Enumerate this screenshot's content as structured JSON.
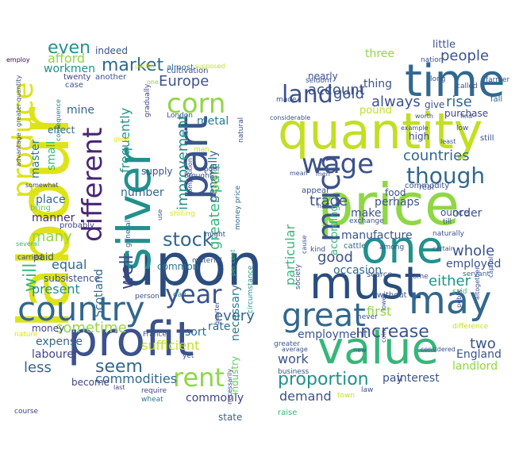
{
  "palette": {
    "purple": "#440154",
    "indigo": "#3b528b",
    "blue": "#31688e",
    "teal": "#21918c",
    "green": "#35b779",
    "lime": "#8fd744",
    "yellow": "#dde318"
  },
  "left_cloud": {
    "words": [
      {
        "text": "labour",
        "color": "#dde318"
      },
      {
        "text": "upon",
        "color": "#2a4d7e"
      },
      {
        "text": "profit",
        "color": "#3b528b"
      },
      {
        "text": "silver",
        "color": "#21918c"
      },
      {
        "text": "country",
        "color": "#31688e"
      },
      {
        "text": "part",
        "color": "#3b528b"
      },
      {
        "text": "produce",
        "color": "#dde318"
      },
      {
        "text": "different",
        "color": "#482475"
      },
      {
        "text": "corn",
        "color": "#8fd744"
      },
      {
        "text": "rent",
        "color": "#8fd744"
      },
      {
        "text": "year",
        "color": "#3b528b"
      },
      {
        "text": "stock",
        "color": "#31688e"
      },
      {
        "text": "market",
        "color": "#31688e"
      },
      {
        "text": "seem",
        "color": "#31688e"
      },
      {
        "text": "well",
        "color": "#414487"
      },
      {
        "text": "will",
        "color": "#35b779"
      },
      {
        "text": "Europe",
        "color": "#3b528b"
      },
      {
        "text": "greater part",
        "color": "#35b779"
      },
      {
        "text": "improvement",
        "color": "#21918c"
      },
      {
        "text": "frequently",
        "color": "#21918c"
      },
      {
        "text": "many",
        "color": "#8fd744"
      },
      {
        "text": "less",
        "color": "#31688e"
      },
      {
        "text": "sometime",
        "color": "#8fd744"
      },
      {
        "text": "every",
        "color": "#31688e"
      },
      {
        "text": "even",
        "color": "#21918c"
      },
      {
        "text": "afford",
        "color": "#8fd744"
      },
      {
        "text": "present",
        "color": "#21918c"
      },
      {
        "text": "sufficient",
        "color": "#c2df23"
      },
      {
        "text": "commodities",
        "color": "#31688e"
      },
      {
        "text": "commonly",
        "color": "#414487"
      },
      {
        "text": "Scotland",
        "color": "#31688e"
      },
      {
        "text": "expense",
        "color": "#31688e"
      },
      {
        "text": "labourer",
        "color": "#414487"
      },
      {
        "text": "place",
        "color": "#31688e"
      },
      {
        "text": "manner",
        "color": "#482878"
      },
      {
        "text": "equal",
        "color": "#31688e"
      },
      {
        "text": "number",
        "color": "#31688e"
      },
      {
        "text": "master",
        "color": "#2a788e"
      },
      {
        "text": "small",
        "color": "#35b779"
      },
      {
        "text": "workmen",
        "color": "#21918c"
      },
      {
        "text": "mine",
        "color": "#31688e"
      },
      {
        "text": "metal",
        "color": "#2a788e"
      },
      {
        "text": "generally",
        "color": "#31688e"
      },
      {
        "text": "necessary",
        "color": "#2a788e"
      },
      {
        "text": "industry",
        "color": "#5ec962"
      },
      {
        "text": "sort",
        "color": "#31688e"
      },
      {
        "text": "rate",
        "color": "#31688e"
      },
      {
        "text": "money",
        "color": "#414487"
      },
      {
        "text": "common",
        "color": "#2a788e"
      },
      {
        "text": "subsistence",
        "color": "#3b528b"
      },
      {
        "text": "paid",
        "color": "#3b528b"
      },
      {
        "text": "become",
        "color": "#414487"
      },
      {
        "text": "state",
        "color": "#31688e"
      },
      {
        "text": "supply",
        "color": "#3b528b"
      },
      {
        "text": "effect",
        "color": "#31688e"
      },
      {
        "text": "bring",
        "color": "#5ec962"
      },
      {
        "text": "probably",
        "color": "#414487"
      },
      {
        "text": "indeed",
        "color": "#3b528b"
      },
      {
        "text": "twenty",
        "color": "#414487"
      },
      {
        "text": "case",
        "color": "#3b528b"
      },
      {
        "text": "another",
        "color": "#3b528b"
      },
      {
        "text": "cultivation",
        "color": "#3b528b"
      },
      {
        "text": "almost",
        "color": "#31688e"
      },
      {
        "text": "London",
        "color": "#3b528b"
      },
      {
        "text": "gradually",
        "color": "#414487"
      },
      {
        "text": "person",
        "color": "#3b528b"
      },
      {
        "text": "day",
        "color": "#2a788e"
      },
      {
        "text": "brought",
        "color": "#3b528b"
      },
      {
        "text": "might",
        "color": "#3b528b"
      },
      {
        "text": "man",
        "color": "#c2df23"
      },
      {
        "text": "poor",
        "color": "#3b528b"
      },
      {
        "text": "shilling",
        "color": "#dde318"
      },
      {
        "text": "general",
        "color": "#31688e"
      },
      {
        "text": "material",
        "color": "#3b528b"
      },
      {
        "text": "carried",
        "color": "#414487"
      },
      {
        "text": "several",
        "color": "#35b779"
      },
      {
        "text": "employ",
        "color": "#440154"
      },
      {
        "text": "greater quantity",
        "color": "#3b528b"
      },
      {
        "text": "consequence",
        "color": "#2a788e"
      },
      {
        "text": "advantage",
        "color": "#414487"
      },
      {
        "text": "somewhat",
        "color": "#414487"
      },
      {
        "text": "course",
        "color": "#414487"
      },
      {
        "text": "nature",
        "color": "#dde318"
      },
      {
        "text": "last",
        "color": "#414487"
      },
      {
        "text": "yet",
        "color": "#3b528b"
      },
      {
        "text": "wheat",
        "color": "#2a788e"
      },
      {
        "text": "require",
        "color": "#414487"
      },
      {
        "text": "France",
        "color": "#3b528b"
      },
      {
        "text": "quarter",
        "color": "#3b528b"
      },
      {
        "text": "money price",
        "color": "#31688e"
      },
      {
        "text": "circumstance",
        "color": "#21918c"
      },
      {
        "text": "natural",
        "color": "#3b528b"
      },
      {
        "text": "competition",
        "color": "#414487"
      },
      {
        "text": "higher",
        "color": "#c2df23"
      },
      {
        "text": "supposed",
        "color": "#c2df23"
      },
      {
        "text": "parish",
        "color": "#dde318"
      },
      {
        "text": "use",
        "color": "#3b528b"
      },
      {
        "text": "per cent",
        "color": "#35b779"
      },
      {
        "text": "necessarily",
        "color": "#414487"
      },
      {
        "text": "one",
        "color": "#8fd744"
      },
      {
        "text": "good",
        "color": "#dde318"
      }
    ]
  },
  "right_cloud": {
    "words": [
      {
        "text": "quantity",
        "color": "#c2df23"
      },
      {
        "text": "price",
        "color": "#8fd744"
      },
      {
        "text": "time",
        "color": "#31688e"
      },
      {
        "text": "one",
        "color": "#21918c"
      },
      {
        "text": "must",
        "color": "#2a4d7e"
      },
      {
        "text": "value",
        "color": "#35b779"
      },
      {
        "text": "may",
        "color": "#31688e"
      },
      {
        "text": "great",
        "color": "#31688e"
      },
      {
        "text": "much",
        "color": "#3b528b"
      },
      {
        "text": "land",
        "color": "#3b528b"
      },
      {
        "text": "wage",
        "color": "#3b528b"
      },
      {
        "text": "though",
        "color": "#31688e"
      },
      {
        "text": "proportion",
        "color": "#21918c"
      },
      {
        "text": "increase",
        "color": "#3b528b"
      },
      {
        "text": "countries",
        "color": "#31688e"
      },
      {
        "text": "trade",
        "color": "#3b528b"
      },
      {
        "text": "people",
        "color": "#3b528b"
      },
      {
        "text": "gold",
        "color": "#3b528b"
      },
      {
        "text": "rise",
        "color": "#31688e"
      },
      {
        "text": "always",
        "color": "#3b528b"
      },
      {
        "text": "account",
        "color": "#3b528b"
      },
      {
        "text": "good",
        "color": "#3b528b"
      },
      {
        "text": "whole",
        "color": "#3b528b"
      },
      {
        "text": "either",
        "color": "#21918c"
      },
      {
        "text": "employed",
        "color": "#3b528b"
      },
      {
        "text": "particular",
        "color": "#35b779"
      },
      {
        "text": "work",
        "color": "#3b528b"
      },
      {
        "text": "demand",
        "color": "#3b528b"
      },
      {
        "text": "two",
        "color": "#3b528b"
      },
      {
        "text": "England",
        "color": "#3b528b"
      },
      {
        "text": "landlord",
        "color": "#8fd744"
      },
      {
        "text": "first",
        "color": "#8fd744"
      },
      {
        "text": "employment",
        "color": "#3b528b"
      },
      {
        "text": "occasion",
        "color": "#31688e"
      },
      {
        "text": "manufacture",
        "color": "#3b528b"
      },
      {
        "text": "make",
        "color": "#3b528b"
      },
      {
        "text": "perhaps",
        "color": "#3b528b"
      },
      {
        "text": "according",
        "color": "#35b779"
      },
      {
        "text": "order",
        "color": "#3b528b"
      },
      {
        "text": "pay",
        "color": "#3b528b"
      },
      {
        "text": "interest",
        "color": "#3b528b"
      },
      {
        "text": "three",
        "color": "#8fd744"
      },
      {
        "text": "little",
        "color": "#3b528b"
      },
      {
        "text": "nearly",
        "color": "#3b528b"
      },
      {
        "text": "thing",
        "color": "#3b528b"
      },
      {
        "text": "pound",
        "color": "#c2df23"
      },
      {
        "text": "give",
        "color": "#3b528b"
      },
      {
        "text": "purchase",
        "color": "#414487"
      },
      {
        "text": "fall",
        "color": "#31688e"
      },
      {
        "text": "food",
        "color": "#3b528b"
      },
      {
        "text": "high",
        "color": "#3b528b"
      },
      {
        "text": "still",
        "color": "#3b528b"
      },
      {
        "text": "ounce",
        "color": "#3b528b"
      },
      {
        "text": "till",
        "color": "#3b528b"
      },
      {
        "text": "cattle",
        "color": "#31688e"
      },
      {
        "text": "kind",
        "color": "#3b528b"
      },
      {
        "text": "scarce",
        "color": "#3b528b"
      },
      {
        "text": "come",
        "color": "#3b528b"
      },
      {
        "text": "without",
        "color": "#3b528b"
      },
      {
        "text": "servant",
        "color": "#31688e"
      },
      {
        "text": "said",
        "color": "#35b779"
      },
      {
        "text": "raise",
        "color": "#35b779"
      },
      {
        "text": "town",
        "color": "#c2df23"
      },
      {
        "text": "law",
        "color": "#3b528b"
      },
      {
        "text": "business",
        "color": "#3b528b"
      },
      {
        "text": "greater",
        "color": "#3b528b"
      },
      {
        "text": "never",
        "color": "#3b528b"
      },
      {
        "text": "society",
        "color": "#3b528b"
      },
      {
        "text": "appear",
        "color": "#3b528b"
      },
      {
        "text": "real",
        "color": "#3b528b"
      },
      {
        "text": "commodity",
        "color": "#3b528b"
      },
      {
        "text": "naturally",
        "color": "#3b528b"
      },
      {
        "text": "among",
        "color": "#3b528b"
      },
      {
        "text": "exchange",
        "color": "#3b528b"
      },
      {
        "text": "seldom",
        "color": "#3b528b"
      },
      {
        "text": "nation",
        "color": "#3b528b"
      },
      {
        "text": "long",
        "color": "#3b528b"
      },
      {
        "text": "called",
        "color": "#3b528b"
      },
      {
        "text": "farmer",
        "color": "#3b528b"
      },
      {
        "text": "made",
        "color": "#3b528b"
      },
      {
        "text": "considerable",
        "color": "#3b528b"
      },
      {
        "text": "worth",
        "color": "#3b528b"
      },
      {
        "text": "find",
        "color": "#3b528b"
      },
      {
        "text": "example",
        "color": "#3b528b"
      },
      {
        "text": "low",
        "color": "#3b528b"
      },
      {
        "text": "mean",
        "color": "#3b528b"
      },
      {
        "text": "men",
        "color": "#3b528b"
      },
      {
        "text": "half",
        "color": "#3b528b"
      },
      {
        "text": "certain",
        "color": "#3b528b"
      },
      {
        "text": "least",
        "color": "#3b528b"
      },
      {
        "text": "cause",
        "color": "#3b528b"
      },
      {
        "text": "lower",
        "color": "#3b528b"
      },
      {
        "text": "public",
        "color": "#3b528b"
      },
      {
        "text": "difference",
        "color": "#c2df23"
      },
      {
        "text": "average",
        "color": "#3b528b"
      },
      {
        "text": "new",
        "color": "#3b528b"
      },
      {
        "text": "coin",
        "color": "#3b528b"
      },
      {
        "text": "considered",
        "color": "#3b528b"
      },
      {
        "text": "altogether",
        "color": "#3b528b"
      },
      {
        "text": "capital",
        "color": "#3b528b"
      }
    ]
  }
}
